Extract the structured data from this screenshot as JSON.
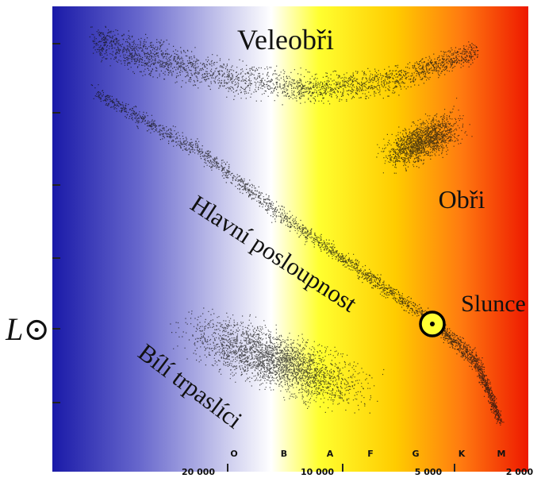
{
  "diagram": {
    "regions": {
      "supergiants": "Veleobři",
      "giants": "Obři",
      "main_sequence": "Hlavní posloupnost",
      "sun": "Slunce",
      "white_dwarfs": "Bílí trpaslíci"
    },
    "y_axis_label": "L⊙",
    "spectral_classes": [
      "O",
      "B",
      "A",
      "F",
      "G",
      "K",
      "M"
    ],
    "temperatures": [
      "20 000",
      "10 000",
      "5 000",
      "2 000"
    ]
  }
}
